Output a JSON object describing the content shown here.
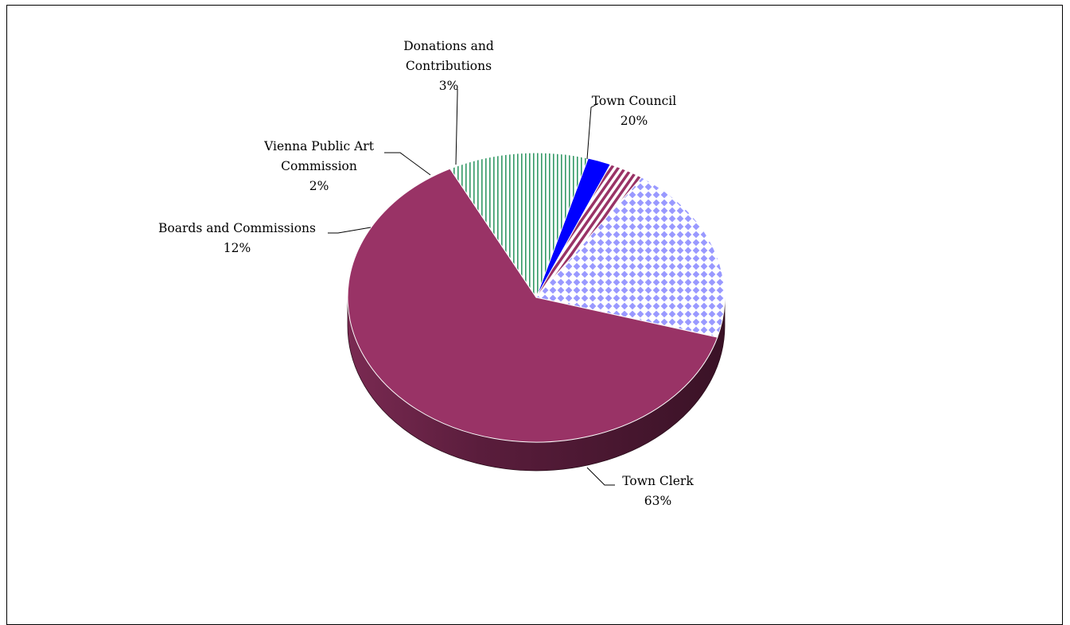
{
  "chart_data": {
    "type": "pie",
    "style": "3d",
    "title": "",
    "categories": [
      "Town Council",
      "Town Clerk",
      "Boards and Commissions",
      "Vienna Public Art Commission",
      "Donations and Contributions"
    ],
    "values": [
      20,
      63,
      12,
      2,
      3
    ],
    "unit": "%",
    "slices": [
      {
        "label_lines": [
          "Town Council"
        ],
        "pct_label": "20%",
        "color": "#9999ff",
        "pattern": "diamond-check"
      },
      {
        "label_lines": [
          "Town Clerk"
        ],
        "pct_label": "63%",
        "color": "#993366",
        "pattern": "solid"
      },
      {
        "label_lines": [
          "Boards and Commissions"
        ],
        "pct_label": "12%",
        "color": "#339966",
        "pattern": "vertical-lines"
      },
      {
        "label_lines": [
          "Vienna Public Art",
          "Commission"
        ],
        "pct_label": "2%",
        "color": "#0000ff",
        "pattern": "solid"
      },
      {
        "label_lines": [
          "Donations and",
          "Contributions"
        ],
        "pct_label": "3%",
        "color": "#993366",
        "pattern": "diagonal-stripes"
      }
    ],
    "legend": "none",
    "data_labels": "outside-with-leaders"
  }
}
